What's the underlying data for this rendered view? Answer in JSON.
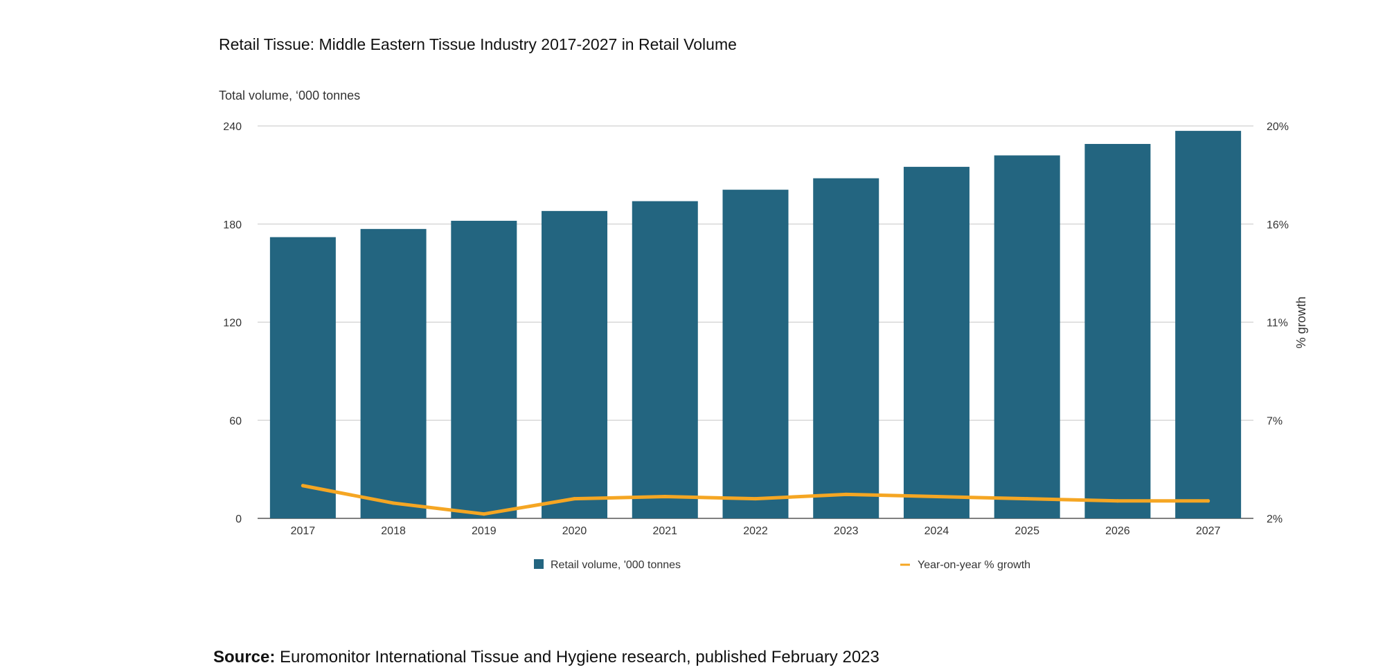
{
  "chart_data": {
    "type": "bar",
    "title": "Retail Tissue: Middle Eastern Tissue Industry 2017-2027 in Retail Volume",
    "ylabel": "Total volume, ‘000 tonnes",
    "y2label": "% growth",
    "categories": [
      "2017",
      "2018",
      "2019",
      "2020",
      "2021",
      "2022",
      "2023",
      "2024",
      "2025",
      "2026",
      "2027"
    ],
    "ylim": [
      0,
      240
    ],
    "yticks": [
      "0",
      "60",
      "120",
      "180",
      "240"
    ],
    "y2ticks": [
      "2%",
      "7%",
      "11%",
      "16%",
      "20%"
    ],
    "y2lim": [
      2,
      20
    ],
    "grid": true,
    "legend_position": "bottom",
    "series": [
      {
        "name": "Retail volume, '000 tonnes",
        "type": "bar",
        "color": "#236580",
        "values": [
          172,
          177,
          182,
          188,
          194,
          201,
          208,
          215,
          222,
          229,
          237
        ]
      },
      {
        "name": "Year-on-year % growth",
        "type": "line",
        "axis": "secondary",
        "color": "#F5A623",
        "values": [
          3.5,
          2.7,
          2.2,
          2.9,
          3.0,
          2.9,
          3.1,
          3.0,
          2.9,
          2.8,
          2.8
        ]
      }
    ]
  },
  "source": {
    "label": "Source:",
    "text": " Euromonitor International Tissue and Hygiene research, published February 2023"
  }
}
